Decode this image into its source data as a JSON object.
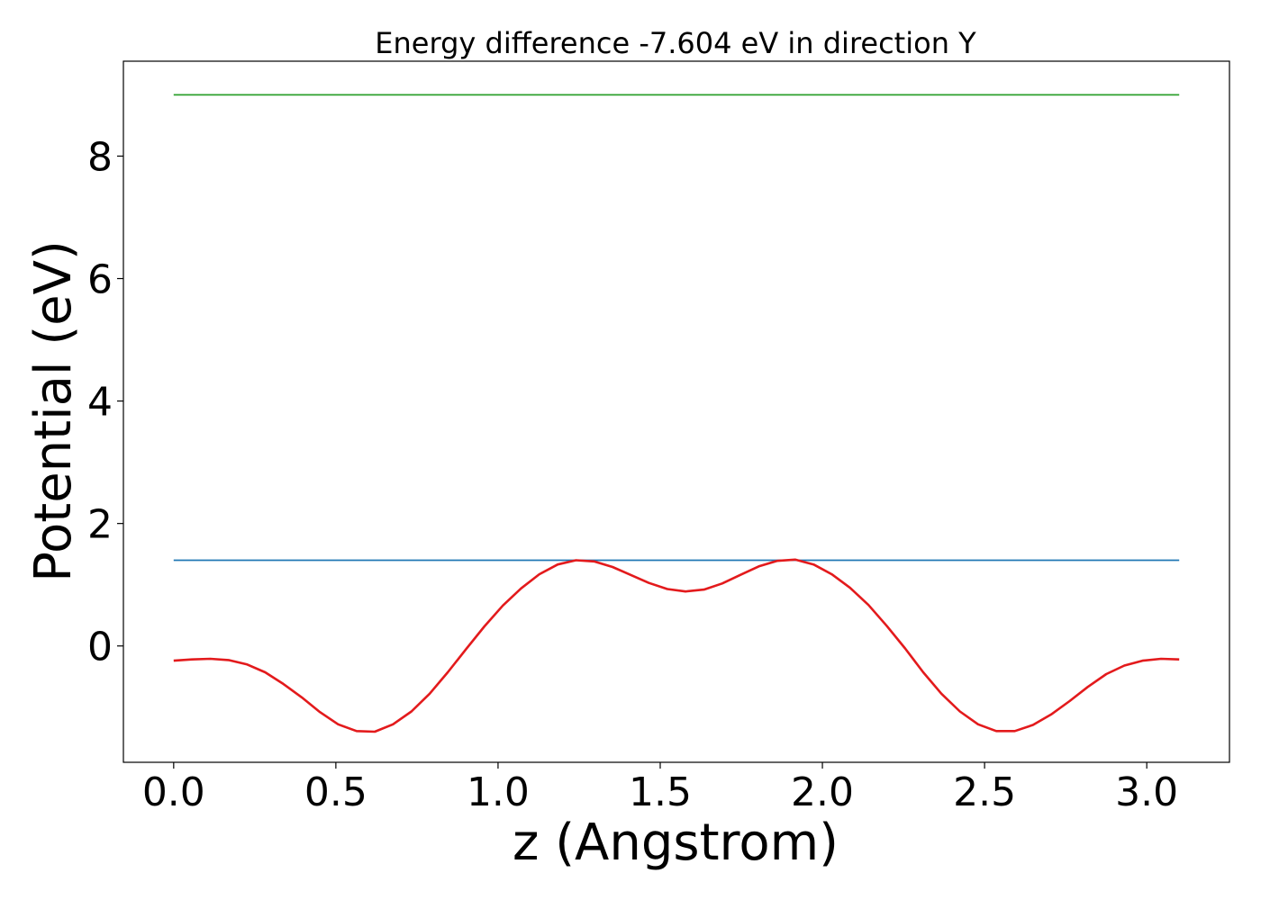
{
  "chart_data": {
    "type": "line",
    "title": "Energy difference -7.604 eV in direction Y",
    "xlabel": "z (Angstrom)",
    "ylabel": "Potential (eV)",
    "xlim": [
      -0.155,
      3.255
    ],
    "ylim": [
      -1.9,
      9.55
    ],
    "x_ticks": [
      0.0,
      0.5,
      1.0,
      1.5,
      2.0,
      2.5,
      3.0
    ],
    "x_tick_labels": [
      "0.0",
      "0.5",
      "1.0",
      "1.5",
      "2.0",
      "2.5",
      "3.0"
    ],
    "y_ticks": [
      0,
      2,
      4,
      6,
      8
    ],
    "y_tick_labels": [
      "0",
      "2",
      "4",
      "6",
      "8"
    ],
    "grid": false,
    "legend": "none",
    "series": [
      {
        "color": "#2ca02c",
        "x": [
          0.0,
          3.1
        ],
        "y": [
          9.0,
          9.0
        ]
      },
      {
        "color": "#1f77b4",
        "x": [
          0.0,
          3.1
        ],
        "y": [
          1.4,
          1.4
        ]
      },
      {
        "color": "#e31a1c",
        "x": [
          0.0,
          0.056,
          0.113,
          0.169,
          0.225,
          0.282,
          0.338,
          0.395,
          0.451,
          0.507,
          0.564,
          0.62,
          0.676,
          0.733,
          0.789,
          0.845,
          0.902,
          0.958,
          1.015,
          1.071,
          1.127,
          1.184,
          1.24,
          1.296,
          1.353,
          1.409,
          1.465,
          1.522,
          1.578,
          1.635,
          1.691,
          1.747,
          1.804,
          1.86,
          1.916,
          1.973,
          2.029,
          2.085,
          2.142,
          2.198,
          2.255,
          2.311,
          2.367,
          2.424,
          2.48,
          2.536,
          2.593,
          2.649,
          2.705,
          2.762,
          2.818,
          2.875,
          2.931,
          2.987,
          3.044,
          3.1
        ],
        "y": [
          -0.24,
          -0.22,
          -0.21,
          -0.23,
          -0.3,
          -0.43,
          -0.62,
          -0.84,
          -1.08,
          -1.28,
          -1.39,
          -1.4,
          -1.28,
          -1.07,
          -0.78,
          -0.43,
          -0.05,
          0.32,
          0.66,
          0.94,
          1.17,
          1.33,
          1.4,
          1.38,
          1.29,
          1.16,
          1.03,
          0.93,
          0.89,
          0.92,
          1.02,
          1.16,
          1.3,
          1.39,
          1.41,
          1.33,
          1.17,
          0.95,
          0.67,
          0.33,
          -0.04,
          -0.43,
          -0.78,
          -1.07,
          -1.28,
          -1.39,
          -1.39,
          -1.29,
          -1.12,
          -0.9,
          -0.67,
          -0.46,
          -0.32,
          -0.24,
          -0.21,
          -0.22
        ]
      }
    ]
  }
}
